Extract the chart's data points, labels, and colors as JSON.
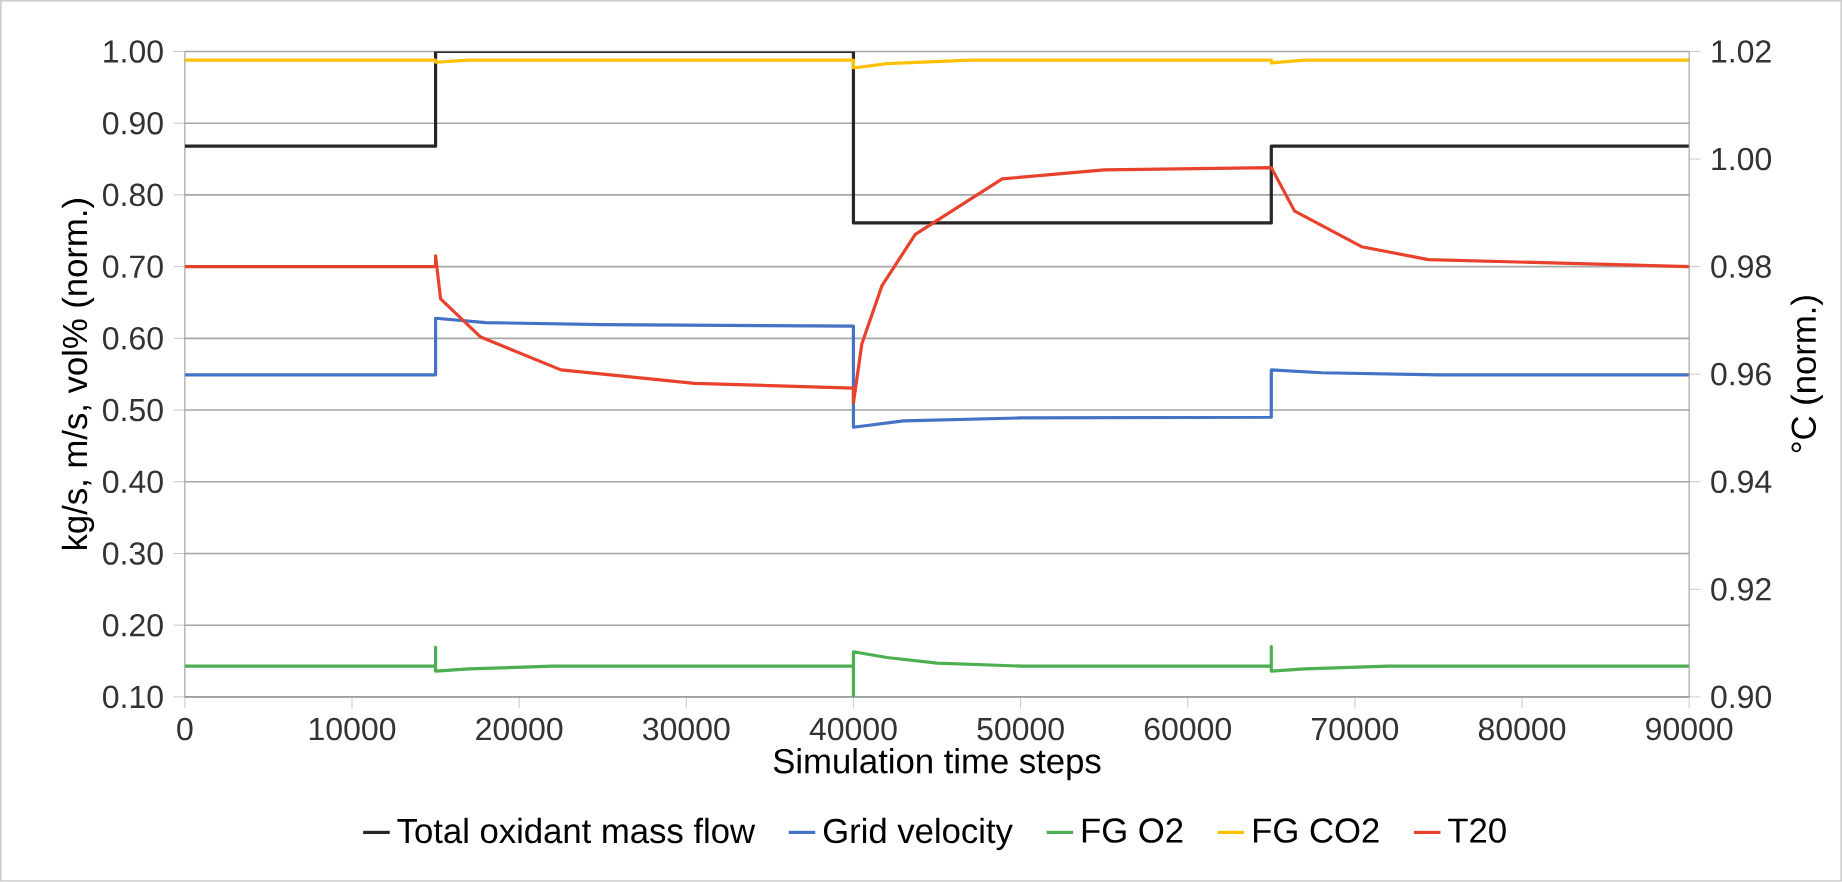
{
  "chart_data": {
    "type": "line",
    "xlabel": "Simulation time steps",
    "ylabel": "kg/s, m/s, vol% (norm.)",
    "y2label": "°C (norm.)",
    "xlim": [
      0,
      90000
    ],
    "xticks": [
      0,
      10000,
      20000,
      30000,
      40000,
      50000,
      60000,
      70000,
      80000,
      90000
    ],
    "ylim": [
      0.1,
      1.0
    ],
    "yticks": [
      {
        "value": 0.1,
        "label": "0.10"
      },
      {
        "value": 0.2,
        "label": "0.20"
      },
      {
        "value": 0.3,
        "label": "0.30"
      },
      {
        "value": 0.4,
        "label": "0.40"
      },
      {
        "value": 0.5,
        "label": "0.50"
      },
      {
        "value": 0.6,
        "label": "0.60"
      },
      {
        "value": 0.7,
        "label": "0.70"
      },
      {
        "value": 0.8,
        "label": "0.80"
      },
      {
        "value": 0.9,
        "label": "0.90"
      },
      {
        "value": 1.0,
        "label": "1.00"
      }
    ],
    "y2lim": [
      0.9,
      1.02
    ],
    "y2ticks": [
      {
        "value": 0.9,
        "label": "0.90"
      },
      {
        "value": 0.92,
        "label": "0.92"
      },
      {
        "value": 0.94,
        "label": "0.94"
      },
      {
        "value": 0.96,
        "label": "0.96"
      },
      {
        "value": 0.98,
        "label": "0.98"
      },
      {
        "value": 1.0,
        "label": "1.00"
      },
      {
        "value": 1.02,
        "label": "1.02"
      }
    ],
    "grid": "y",
    "legend": "bottom",
    "series": [
      {
        "name": "Total oxidant mass flow",
        "color": "#262626",
        "x": [
          0,
          15000,
          15000,
          40000,
          40000,
          65000,
          65000,
          90000
        ],
        "values": [
          0.868,
          0.868,
          1.0,
          1.0,
          0.761,
          0.761,
          0.868,
          0.868
        ]
      },
      {
        "name": "Grid velocity",
        "color": "#4472c4",
        "x": [
          0,
          15000,
          15000,
          18000,
          25000,
          40000,
          40000,
          43000,
          50000,
          65000,
          65000,
          68000,
          75000,
          90000
        ],
        "values": [
          0.549,
          0.549,
          0.628,
          0.622,
          0.619,
          0.617,
          0.476,
          0.485,
          0.489,
          0.49,
          0.556,
          0.552,
          0.549,
          0.549
        ]
      },
      {
        "name": "FG O2",
        "color": "#4caf50",
        "x": [
          0,
          15000,
          15000,
          15000,
          17000,
          22000,
          40000,
          40000,
          40000,
          42000,
          45000,
          50000,
          65000,
          65000,
          65000,
          67000,
          72000,
          90000
        ],
        "values": [
          0.143,
          0.143,
          0.169,
          0.136,
          0.139,
          0.143,
          0.143,
          0.1,
          0.163,
          0.155,
          0.147,
          0.143,
          0.143,
          0.17,
          0.136,
          0.139,
          0.143,
          0.143
        ]
      },
      {
        "name": "FG CO2",
        "color": "#ffc000",
        "x": [
          0,
          15000,
          15000,
          17000,
          40000,
          40000,
          42000,
          47000,
          65000,
          65000,
          67000,
          90000
        ],
        "values": [
          0.988,
          0.988,
          0.985,
          0.988,
          0.988,
          0.977,
          0.983,
          0.988,
          0.988,
          0.984,
          0.988,
          0.988
        ]
      },
      {
        "name": "T20",
        "color": "#e8412c",
        "axis": "y2",
        "x": [
          0,
          15000,
          15000,
          15300,
          17700,
          22500,
          30500,
          40000,
          40000,
          40500,
          41700,
          43700,
          48900,
          55000,
          65000,
          65000,
          66400,
          70400,
          74400,
          90000
        ],
        "values": [
          0.98,
          0.98,
          0.982,
          0.974,
          0.9669,
          0.9608,
          0.9583,
          0.9574,
          0.9547,
          0.9656,
          0.9764,
          0.986,
          0.9963,
          0.998,
          0.9984,
          0.9984,
          0.9903,
          0.9837,
          0.9813,
          0.98
        ]
      }
    ]
  }
}
